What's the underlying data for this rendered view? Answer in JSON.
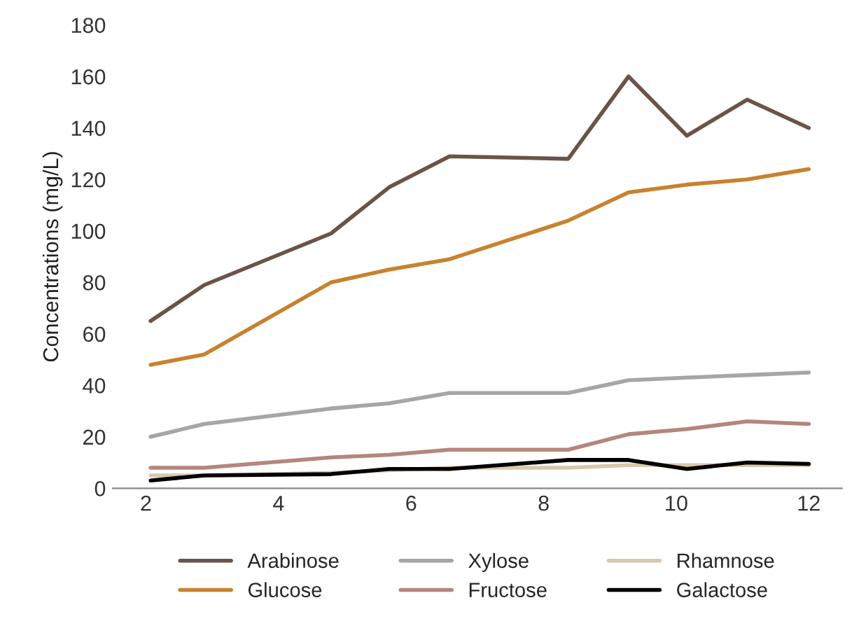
{
  "chart_data": {
    "type": "line",
    "ylabel": "Concentrations (mg/L)",
    "x": [
      2.07,
      2.88,
      4.79,
      5.67,
      6.58,
      8.37,
      9.28,
      10.16,
      11.07,
      12
    ],
    "series": [
      {
        "name": "Arabinose",
        "color": "#6b5446",
        "values": [
          65,
          79,
          99,
          117,
          129,
          128,
          160,
          137,
          151,
          140
        ]
      },
      {
        "name": "Glucose",
        "color": "#c8822f",
        "values": [
          48,
          52,
          80,
          85,
          89,
          104,
          115,
          118,
          120,
          124
        ]
      },
      {
        "name": "Xylose",
        "color": "#a6a6a6",
        "values": [
          20,
          25,
          31,
          33,
          37,
          37,
          42,
          43,
          44,
          45
        ]
      },
      {
        "name": "Fructose",
        "color": "#b4867c",
        "values": [
          8,
          8,
          12,
          13,
          15,
          15,
          21,
          23,
          26,
          25
        ]
      },
      {
        "name": "Rhamnose",
        "color": "#d9c8a9",
        "values": [
          5,
          5,
          6,
          7,
          8,
          8,
          9,
          9,
          9,
          9
        ]
      },
      {
        "name": "Galactose",
        "color": "#000000",
        "values": [
          3,
          5,
          5.5,
          7.5,
          7.5,
          11,
          11,
          7.5,
          10,
          9.5
        ]
      }
    ],
    "xlim": [
      1.5,
      12.5
    ],
    "xticks": [
      2,
      4,
      6,
      8,
      10,
      12
    ],
    "ylim": [
      0,
      180
    ],
    "yticks": [
      0,
      20,
      40,
      60,
      80,
      100,
      120,
      140,
      160,
      180
    ],
    "grid": false,
    "legend": "bottom",
    "marker": "none",
    "line_style": "solid"
  }
}
